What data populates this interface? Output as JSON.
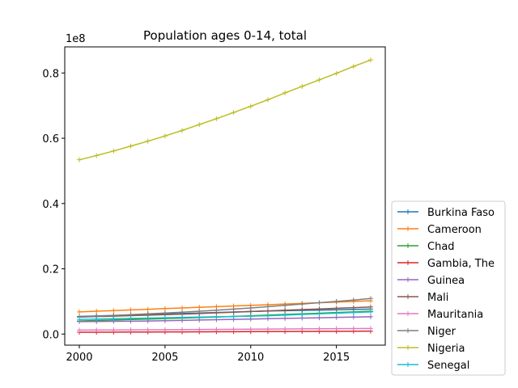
{
  "chart_data": {
    "type": "line",
    "title": "Population ages 0-14, total",
    "xlabel": "",
    "ylabel": "",
    "y_offset_label": "1e8",
    "xlim": [
      1999.15,
      2017.85
    ],
    "ylim": [
      -0.034,
      0.88
    ],
    "x_ticks": [
      2000,
      2005,
      2010,
      2015
    ],
    "x_tick_labels": [
      "2000",
      "2005",
      "2010",
      "2015"
    ],
    "y_ticks": [
      0.0,
      0.2,
      0.4,
      0.6,
      0.8
    ],
    "y_tick_labels": [
      "0.0",
      "0.2",
      "0.4",
      "0.6",
      "0.8"
    ],
    "legend_position": "outside-lower-right",
    "grid": false,
    "marker": "+",
    "x": [
      2000,
      2001,
      2002,
      2003,
      2004,
      2005,
      2006,
      2007,
      2008,
      2009,
      2010,
      2011,
      2012,
      2013,
      2014,
      2015,
      2016,
      2017
    ],
    "series": [
      {
        "name": "Burkina Faso",
        "color": "#1f77b4",
        "values": [
          0.054,
          0.0555,
          0.057,
          0.0585,
          0.06,
          0.0615,
          0.063,
          0.0645,
          0.066,
          0.0675,
          0.069,
          0.0705,
          0.0715,
          0.0725,
          0.0735,
          0.0745,
          0.0755,
          0.0765
        ]
      },
      {
        "name": "Cameroon",
        "color": "#ff7f0e",
        "values": [
          0.068,
          0.07,
          0.072,
          0.074,
          0.076,
          0.078,
          0.08,
          0.082,
          0.084,
          0.086,
          0.088,
          0.09,
          0.092,
          0.094,
          0.096,
          0.098,
          0.1,
          0.102
        ]
      },
      {
        "name": "Chad",
        "color": "#2ca02c",
        "values": [
          0.04,
          0.0415,
          0.043,
          0.0445,
          0.046,
          0.0475,
          0.049,
          0.0505,
          0.052,
          0.054,
          0.056,
          0.058,
          0.06,
          0.062,
          0.064,
          0.066,
          0.068,
          0.07
        ]
      },
      {
        "name": "Gambia, The",
        "color": "#d62728",
        "values": [
          0.0055,
          0.0057,
          0.0059,
          0.0061,
          0.0063,
          0.0065,
          0.0067,
          0.0069,
          0.0071,
          0.0073,
          0.0075,
          0.0077,
          0.0079,
          0.0081,
          0.0083,
          0.0085,
          0.0087,
          0.0089
        ]
      },
      {
        "name": "Guinea",
        "color": "#9467bd",
        "values": [
          0.038,
          0.0385,
          0.039,
          0.0395,
          0.04,
          0.041,
          0.042,
          0.043,
          0.044,
          0.045,
          0.046,
          0.047,
          0.048,
          0.049,
          0.05,
          0.051,
          0.052,
          0.053
        ]
      },
      {
        "name": "Mali",
        "color": "#8c564b",
        "values": [
          0.052,
          0.0535,
          0.055,
          0.0565,
          0.058,
          0.0595,
          0.061,
          0.063,
          0.065,
          0.067,
          0.069,
          0.071,
          0.073,
          0.075,
          0.077,
          0.079,
          0.081,
          0.083
        ]
      },
      {
        "name": "Mauritania",
        "color": "#e377c2",
        "values": [
          0.012,
          0.0123,
          0.0126,
          0.0129,
          0.0132,
          0.0135,
          0.0138,
          0.0141,
          0.0144,
          0.0147,
          0.015,
          0.0153,
          0.0156,
          0.0159,
          0.0162,
          0.0165,
          0.0168,
          0.0172
        ]
      },
      {
        "name": "Niger",
        "color": "#7f7f7f",
        "values": [
          0.052,
          0.0545,
          0.057,
          0.0595,
          0.062,
          0.0645,
          0.067,
          0.07,
          0.073,
          0.0765,
          0.08,
          0.084,
          0.088,
          0.092,
          0.096,
          0.1,
          0.104,
          0.109
        ]
      },
      {
        "name": "Nigeria",
        "color": "#bcbd22",
        "values": [
          0.534,
          0.547,
          0.561,
          0.576,
          0.591,
          0.607,
          0.624,
          0.642,
          0.66,
          0.679,
          0.698,
          0.718,
          0.739,
          0.759,
          0.779,
          0.799,
          0.82,
          0.84
        ]
      },
      {
        "name": "Senegal",
        "color": "#17becf",
        "values": [
          0.045,
          0.046,
          0.047,
          0.048,
          0.049,
          0.05,
          0.051,
          0.052,
          0.053,
          0.054,
          0.055,
          0.056,
          0.058,
          0.06,
          0.062,
          0.064,
          0.066,
          0.068
        ]
      }
    ]
  }
}
